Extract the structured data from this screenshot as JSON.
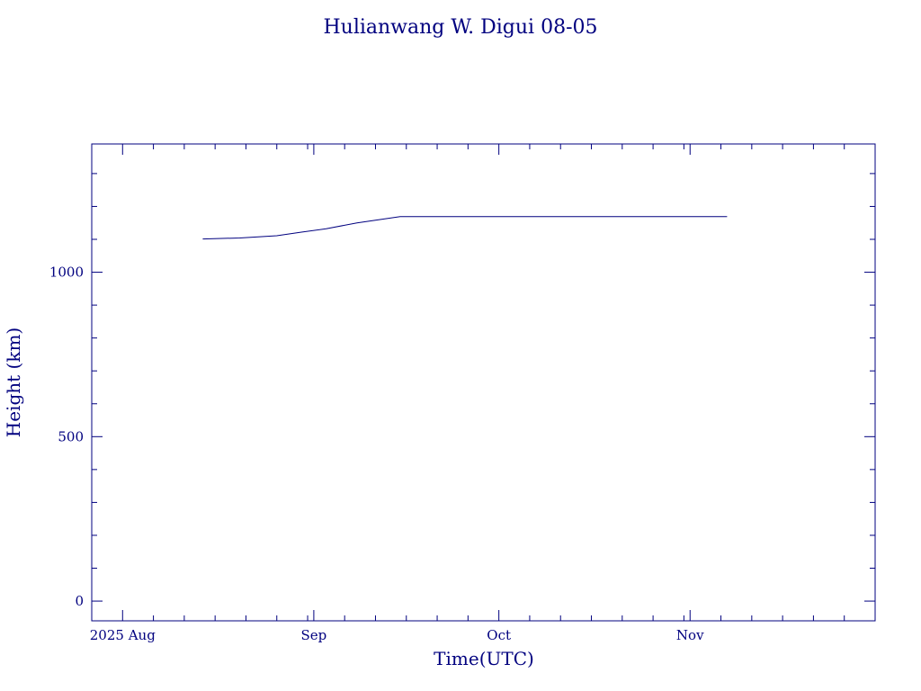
{
  "chart_data": {
    "type": "line",
    "title": "Hulianwang W. Digui 08-05",
    "xlabel": "Time(UTC)",
    "ylabel": "Height (km)",
    "x_axis": {
      "type": "date",
      "range": [
        "2025-07-27",
        "2025-12-01"
      ],
      "tick_labels": [
        {
          "date": "2025-08-01",
          "label": "2025 Aug"
        },
        {
          "date": "2025-09-01",
          "label": "Sep"
        },
        {
          "date": "2025-10-01",
          "label": "Oct"
        },
        {
          "date": "2025-11-01",
          "label": "Nov"
        }
      ],
      "minor_ticks_every_days": 5
    },
    "y_axis": {
      "range": [
        -60,
        1390
      ],
      "major_ticks": [
        0,
        500,
        1000
      ],
      "minor_tick_step": 100
    },
    "grid": false,
    "series": [
      {
        "color": "#00007f",
        "points": [
          {
            "x": "2025-08-14",
            "y": 1101
          },
          {
            "x": "2025-08-20",
            "y": 1104
          },
          {
            "x": "2025-08-26",
            "y": 1111
          },
          {
            "x": "2025-08-30",
            "y": 1122
          },
          {
            "x": "2025-09-03",
            "y": 1132
          },
          {
            "x": "2025-09-08",
            "y": 1150
          },
          {
            "x": "2025-09-15",
            "y": 1169
          },
          {
            "x": "2025-09-20",
            "y": 1169
          },
          {
            "x": "2025-10-01",
            "y": 1169
          },
          {
            "x": "2025-10-15",
            "y": 1169
          },
          {
            "x": "2025-11-01",
            "y": 1169
          },
          {
            "x": "2025-11-07",
            "y": 1169
          }
        ]
      }
    ]
  }
}
